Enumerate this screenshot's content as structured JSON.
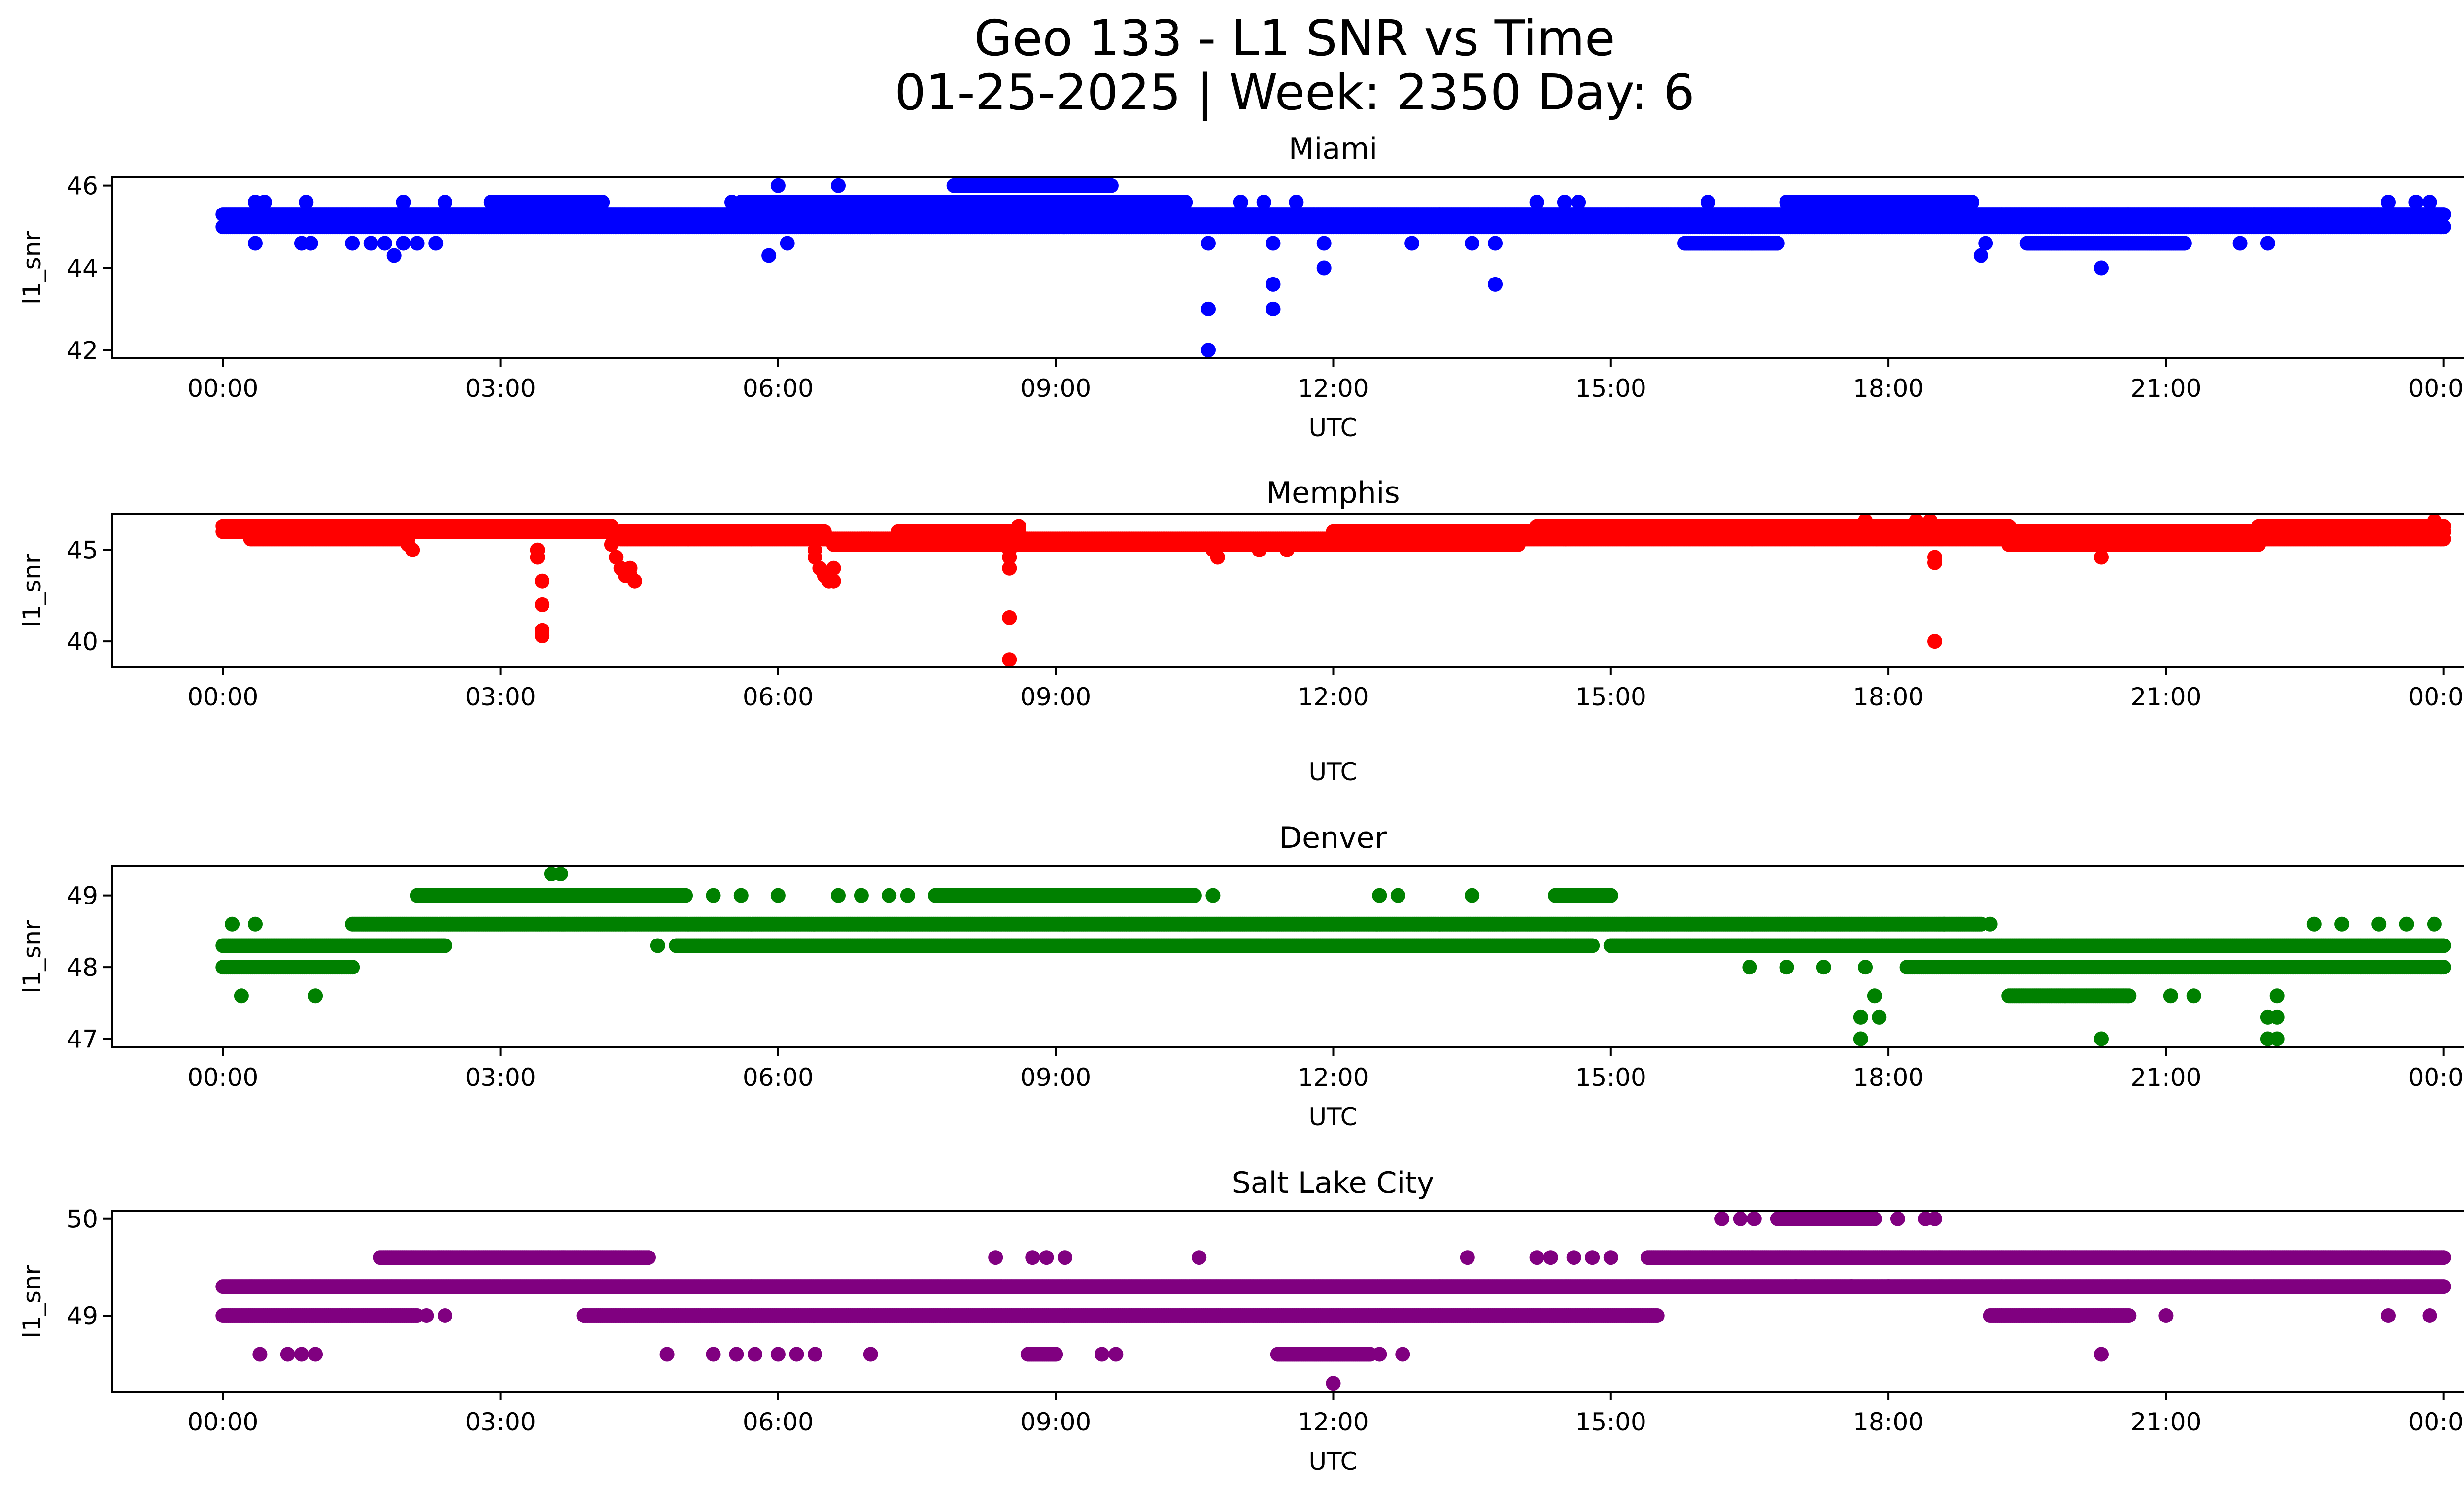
{
  "chart_data": {
    "type": "scatter",
    "title": "Geo 133 - L1 SNR vs Time",
    "subtitle": "01-25-2025 | Week: 2350 Day: 6",
    "x_unit": "hours UTC",
    "xlim": [
      -1.2,
      25.2
    ],
    "x_ticks": [
      0,
      3,
      6,
      9,
      12,
      15,
      18,
      21,
      24
    ],
    "x_tick_labels": [
      "00:00",
      "03:00",
      "06:00",
      "09:00",
      "12:00",
      "15:00",
      "18:00",
      "21:00",
      "00:00"
    ],
    "grid": false,
    "legend": "none",
    "panels": [
      {
        "title": "Miami",
        "color": "#0000ff",
        "xlabel": "UTC",
        "ylabel": "l1_snr",
        "ylim": [
          41.8,
          46.2
        ],
        "y_ticks": [
          42,
          44,
          46
        ],
        "y_tick_labels": [
          "42",
          "44",
          "46"
        ],
        "runs": [
          {
            "y": 45.0,
            "x0": 0.0,
            "x1": 24.0
          },
          {
            "y": 45.3,
            "x0": 0.0,
            "x1": 24.0
          },
          {
            "y": 45.6,
            "x0": 2.9,
            "x1": 4.1
          },
          {
            "y": 45.6,
            "x0": 5.6,
            "x1": 10.4
          },
          {
            "y": 46.0,
            "x0": 7.9,
            "x1": 9.6
          },
          {
            "y": 45.6,
            "x0": 16.9,
            "x1": 18.9
          },
          {
            "y": 44.6,
            "x0": 19.5,
            "x1": 21.2
          },
          {
            "y": 44.6,
            "x0": 15.8,
            "x1": 16.8
          }
        ],
        "points": [
          {
            "x": 0.35,
            "y": 45.6
          },
          {
            "x": 0.45,
            "y": 45.6
          },
          {
            "x": 0.9,
            "y": 45.6
          },
          {
            "x": 0.35,
            "y": 44.6
          },
          {
            "x": 0.85,
            "y": 44.6
          },
          {
            "x": 0.95,
            "y": 44.6
          },
          {
            "x": 1.4,
            "y": 44.6
          },
          {
            "x": 1.6,
            "y": 44.6
          },
          {
            "x": 1.75,
            "y": 44.6
          },
          {
            "x": 1.85,
            "y": 44.3
          },
          {
            "x": 1.95,
            "y": 44.6
          },
          {
            "x": 2.1,
            "y": 44.6
          },
          {
            "x": 2.3,
            "y": 44.6
          },
          {
            "x": 1.95,
            "y": 45.6
          },
          {
            "x": 2.4,
            "y": 45.6
          },
          {
            "x": 5.5,
            "y": 45.6
          },
          {
            "x": 5.9,
            "y": 44.3
          },
          {
            "x": 6.0,
            "y": 46.0
          },
          {
            "x": 6.1,
            "y": 44.6
          },
          {
            "x": 6.65,
            "y": 46.0
          },
          {
            "x": 7.0,
            "y": 45.0
          },
          {
            "x": 10.4,
            "y": 45.6
          },
          {
            "x": 10.65,
            "y": 44.6
          },
          {
            "x": 10.65,
            "y": 43.0
          },
          {
            "x": 10.65,
            "y": 42.0
          },
          {
            "x": 11.0,
            "y": 45.6
          },
          {
            "x": 11.25,
            "y": 45.6
          },
          {
            "x": 11.35,
            "y": 44.6
          },
          {
            "x": 11.35,
            "y": 43.6
          },
          {
            "x": 11.35,
            "y": 43.0
          },
          {
            "x": 11.6,
            "y": 45.6
          },
          {
            "x": 11.9,
            "y": 44.6
          },
          {
            "x": 11.9,
            "y": 44.0
          },
          {
            "x": 12.85,
            "y": 44.6
          },
          {
            "x": 13.5,
            "y": 44.6
          },
          {
            "x": 13.75,
            "y": 44.6
          },
          {
            "x": 13.75,
            "y": 43.6
          },
          {
            "x": 14.2,
            "y": 45.6
          },
          {
            "x": 14.5,
            "y": 45.6
          },
          {
            "x": 14.65,
            "y": 45.6
          },
          {
            "x": 16.05,
            "y": 45.6
          },
          {
            "x": 19.0,
            "y": 44.3
          },
          {
            "x": 19.05,
            "y": 44.6
          },
          {
            "x": 20.3,
            "y": 44.0
          },
          {
            "x": 21.8,
            "y": 44.6
          },
          {
            "x": 22.1,
            "y": 44.6
          },
          {
            "x": 23.4,
            "y": 45.6
          },
          {
            "x": 23.7,
            "y": 45.6
          },
          {
            "x": 23.85,
            "y": 45.6
          }
        ]
      },
      {
        "title": "Memphis",
        "color": "#ff0000",
        "xlabel": "UTC",
        "ylabel": "l1_snr",
        "ylim": [
          38.6,
          46.96
        ],
        "y_ticks": [
          40,
          45
        ],
        "y_tick_labels": [
          "40",
          "45"
        ],
        "runs": [
          {
            "y": 46.3,
            "x0": 0.0,
            "x1": 4.2
          },
          {
            "y": 46.0,
            "x0": 0.0,
            "x1": 4.2
          },
          {
            "y": 45.6,
            "x0": 0.3,
            "x1": 2.0
          },
          {
            "y": 46.0,
            "x0": 4.3,
            "x1": 6.5
          },
          {
            "y": 45.6,
            "x0": 4.3,
            "x1": 7.0
          },
          {
            "y": 45.3,
            "x0": 6.6,
            "x1": 11.0
          },
          {
            "y": 45.6,
            "x0": 6.9,
            "x1": 13.5
          },
          {
            "y": 46.0,
            "x0": 7.3,
            "x1": 8.6
          },
          {
            "y": 45.3,
            "x0": 11.0,
            "x1": 14.0
          },
          {
            "y": 46.0,
            "x0": 12.0,
            "x1": 24.0
          },
          {
            "y": 45.6,
            "x0": 13.0,
            "x1": 24.0
          },
          {
            "y": 46.3,
            "x0": 14.2,
            "x1": 19.3
          },
          {
            "y": 45.3,
            "x0": 19.3,
            "x1": 22.0
          },
          {
            "y": 46.3,
            "x0": 22.0,
            "x1": 24.0
          }
        ],
        "points": [
          {
            "x": 2.0,
            "y": 45.3
          },
          {
            "x": 2.05,
            "y": 45.0
          },
          {
            "x": 3.4,
            "y": 45.0
          },
          {
            "x": 3.4,
            "y": 44.6
          },
          {
            "x": 3.45,
            "y": 43.3
          },
          {
            "x": 3.45,
            "y": 42.0
          },
          {
            "x": 3.45,
            "y": 40.6
          },
          {
            "x": 3.45,
            "y": 40.3
          },
          {
            "x": 4.2,
            "y": 45.3
          },
          {
            "x": 4.25,
            "y": 44.6
          },
          {
            "x": 4.3,
            "y": 44.0
          },
          {
            "x": 4.35,
            "y": 43.6
          },
          {
            "x": 4.4,
            "y": 43.6
          },
          {
            "x": 4.4,
            "y": 44.0
          },
          {
            "x": 4.45,
            "y": 43.3
          },
          {
            "x": 6.4,
            "y": 45.0
          },
          {
            "x": 6.4,
            "y": 44.6
          },
          {
            "x": 6.45,
            "y": 44.0
          },
          {
            "x": 6.5,
            "y": 43.6
          },
          {
            "x": 6.55,
            "y": 43.3
          },
          {
            "x": 6.6,
            "y": 44.0
          },
          {
            "x": 6.6,
            "y": 43.3
          },
          {
            "x": 8.5,
            "y": 45.0
          },
          {
            "x": 8.5,
            "y": 44.6
          },
          {
            "x": 8.5,
            "y": 44.0
          },
          {
            "x": 8.5,
            "y": 41.3
          },
          {
            "x": 8.5,
            "y": 39.0
          },
          {
            "x": 8.6,
            "y": 46.3
          },
          {
            "x": 10.7,
            "y": 45.0
          },
          {
            "x": 10.75,
            "y": 44.6
          },
          {
            "x": 11.2,
            "y": 45.0
          },
          {
            "x": 11.5,
            "y": 45.0
          },
          {
            "x": 17.75,
            "y": 46.6
          },
          {
            "x": 18.3,
            "y": 46.6
          },
          {
            "x": 18.5,
            "y": 44.6
          },
          {
            "x": 18.5,
            "y": 44.3
          },
          {
            "x": 18.5,
            "y": 40.0
          },
          {
            "x": 18.45,
            "y": 46.6
          },
          {
            "x": 20.3,
            "y": 44.6
          },
          {
            "x": 23.9,
            "y": 46.6
          }
        ]
      },
      {
        "title": "Denver",
        "color": "#008000",
        "xlabel": "UTC",
        "ylabel": "l1_snr",
        "ylim": [
          46.88,
          49.41
        ],
        "y_ticks": [
          47,
          48,
          49
        ],
        "y_tick_labels": [
          "47",
          "48",
          "49"
        ],
        "runs": [
          {
            "y": 48.3,
            "x0": 0.0,
            "x1": 2.4
          },
          {
            "y": 48.0,
            "x0": 0.0,
            "x1": 1.4
          },
          {
            "y": 48.6,
            "x0": 1.4,
            "x1": 18.6
          },
          {
            "y": 49.0,
            "x0": 2.1,
            "x1": 5.0
          },
          {
            "y": 49.0,
            "x0": 7.7,
            "x1": 10.5
          },
          {
            "y": 48.3,
            "x0": 4.9,
            "x1": 11.2
          },
          {
            "y": 48.3,
            "x0": 10.5,
            "x1": 14.8
          },
          {
            "y": 49.0,
            "x0": 14.4,
            "x1": 15.0
          },
          {
            "y": 48.3,
            "x0": 15.0,
            "x1": 24.0
          },
          {
            "y": 48.0,
            "x0": 18.2,
            "x1": 24.0
          },
          {
            "y": 47.6,
            "x0": 19.3,
            "x1": 20.6
          },
          {
            "y": 48.6,
            "x0": 18.6,
            "x1": 19.0
          }
        ],
        "points": [
          {
            "x": 0.1,
            "y": 48.6
          },
          {
            "x": 0.35,
            "y": 48.6
          },
          {
            "x": 0.2,
            "y": 47.6
          },
          {
            "x": 1.0,
            "y": 47.6
          },
          {
            "x": 3.55,
            "y": 49.3
          },
          {
            "x": 3.65,
            "y": 49.3
          },
          {
            "x": 4.7,
            "y": 48.3
          },
          {
            "x": 5.3,
            "y": 49.0
          },
          {
            "x": 5.6,
            "y": 49.0
          },
          {
            "x": 6.0,
            "y": 49.0
          },
          {
            "x": 6.65,
            "y": 49.0
          },
          {
            "x": 6.9,
            "y": 49.0
          },
          {
            "x": 7.2,
            "y": 49.0
          },
          {
            "x": 7.4,
            "y": 49.0
          },
          {
            "x": 10.7,
            "y": 49.0
          },
          {
            "x": 12.5,
            "y": 49.0
          },
          {
            "x": 12.7,
            "y": 49.0
          },
          {
            "x": 13.5,
            "y": 49.0
          },
          {
            "x": 16.5,
            "y": 48.0
          },
          {
            "x": 16.9,
            "y": 48.0
          },
          {
            "x": 17.3,
            "y": 48.0
          },
          {
            "x": 17.7,
            "y": 47.3
          },
          {
            "x": 17.7,
            "y": 47.0
          },
          {
            "x": 17.75,
            "y": 48.0
          },
          {
            "x": 17.85,
            "y": 47.6
          },
          {
            "x": 17.9,
            "y": 47.3
          },
          {
            "x": 19.1,
            "y": 48.6
          },
          {
            "x": 20.3,
            "y": 47.0
          },
          {
            "x": 21.05,
            "y": 47.6
          },
          {
            "x": 21.3,
            "y": 47.6
          },
          {
            "x": 22.1,
            "y": 47.3
          },
          {
            "x": 22.1,
            "y": 47.0
          },
          {
            "x": 22.2,
            "y": 47.6
          },
          {
            "x": 22.2,
            "y": 47.3
          },
          {
            "x": 22.2,
            "y": 47.0
          },
          {
            "x": 22.6,
            "y": 48.6
          },
          {
            "x": 22.9,
            "y": 48.6
          },
          {
            "x": 23.3,
            "y": 48.6
          },
          {
            "x": 23.6,
            "y": 48.6
          },
          {
            "x": 23.9,
            "y": 48.6
          }
        ]
      },
      {
        "title": "Salt Lake City",
        "color": "#800080",
        "xlabel": "UTC",
        "ylabel": "l1_snr",
        "ylim": [
          48.21,
          50.08
        ],
        "y_ticks": [
          49,
          50
        ],
        "y_tick_labels": [
          "49",
          "50"
        ],
        "runs": [
          {
            "y": 49.3,
            "x0": 0.0,
            "x1": 24.0
          },
          {
            "y": 49.0,
            "x0": 0.0,
            "x1": 2.1
          },
          {
            "y": 49.6,
            "x0": 1.7,
            "x1": 4.6
          },
          {
            "y": 49.0,
            "x0": 3.9,
            "x1": 15.5
          },
          {
            "y": 49.6,
            "x0": 15.4,
            "x1": 24.0
          },
          {
            "y": 50.0,
            "x0": 16.8,
            "x1": 17.8
          },
          {
            "y": 49.0,
            "x0": 19.1,
            "x1": 20.6
          },
          {
            "y": 48.6,
            "x0": 11.4,
            "x1": 12.4
          },
          {
            "y": 48.6,
            "x0": 8.7,
            "x1": 9.0
          }
        ],
        "points": [
          {
            "x": 0.4,
            "y": 48.6
          },
          {
            "x": 0.7,
            "y": 48.6
          },
          {
            "x": 0.85,
            "y": 48.6
          },
          {
            "x": 1.0,
            "y": 48.6
          },
          {
            "x": 2.2,
            "y": 49.0
          },
          {
            "x": 2.4,
            "y": 49.0
          },
          {
            "x": 4.8,
            "y": 48.6
          },
          {
            "x": 5.3,
            "y": 48.6
          },
          {
            "x": 5.55,
            "y": 48.6
          },
          {
            "x": 5.75,
            "y": 48.6
          },
          {
            "x": 6.0,
            "y": 48.6
          },
          {
            "x": 6.2,
            "y": 48.6
          },
          {
            "x": 6.4,
            "y": 48.6
          },
          {
            "x": 7.0,
            "y": 48.6
          },
          {
            "x": 8.35,
            "y": 49.6
          },
          {
            "x": 8.75,
            "y": 49.6
          },
          {
            "x": 8.9,
            "y": 49.6
          },
          {
            "x": 9.1,
            "y": 49.6
          },
          {
            "x": 9.5,
            "y": 48.6
          },
          {
            "x": 9.65,
            "y": 48.6
          },
          {
            "x": 10.55,
            "y": 49.6
          },
          {
            "x": 12.0,
            "y": 48.3
          },
          {
            "x": 12.5,
            "y": 48.6
          },
          {
            "x": 12.75,
            "y": 48.6
          },
          {
            "x": 13.45,
            "y": 49.6
          },
          {
            "x": 14.2,
            "y": 49.6
          },
          {
            "x": 14.35,
            "y": 49.6
          },
          {
            "x": 14.6,
            "y": 49.6
          },
          {
            "x": 14.8,
            "y": 49.6
          },
          {
            "x": 15.0,
            "y": 49.6
          },
          {
            "x": 16.2,
            "y": 50.0
          },
          {
            "x": 16.4,
            "y": 50.0
          },
          {
            "x": 16.55,
            "y": 50.0
          },
          {
            "x": 17.85,
            "y": 50.0
          },
          {
            "x": 18.1,
            "y": 50.0
          },
          {
            "x": 18.4,
            "y": 50.0
          },
          {
            "x": 18.5,
            "y": 50.0
          },
          {
            "x": 17.0,
            "y": 49.3
          },
          {
            "x": 17.6,
            "y": 49.3
          },
          {
            "x": 18.0,
            "y": 49.3
          },
          {
            "x": 20.3,
            "y": 48.6
          },
          {
            "x": 21.0,
            "y": 49.0
          },
          {
            "x": 23.4,
            "y": 49.0
          },
          {
            "x": 23.85,
            "y": 49.0
          }
        ]
      }
    ]
  }
}
